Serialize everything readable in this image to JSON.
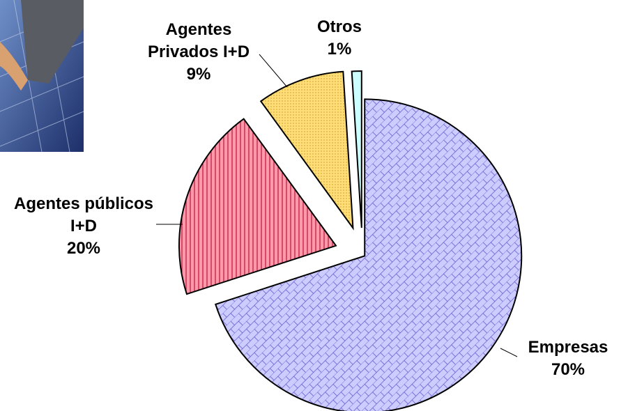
{
  "chart_data": {
    "type": "pie",
    "categories": [
      "Empresas",
      "Agentes públicos I+D",
      "Agentes Privados I+D",
      "Otros"
    ],
    "values": [
      70,
      20,
      9,
      1
    ],
    "value_labels": [
      "70%",
      "20%",
      "9%",
      "1%"
    ],
    "colors": [
      "#ccccff",
      "#ff99aa",
      "#ffdd77",
      "#ccffff"
    ]
  }
}
